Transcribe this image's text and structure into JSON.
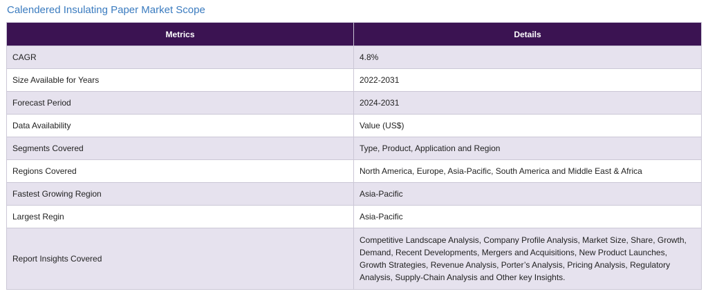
{
  "title": "Calendered Insulating Paper Market Scope",
  "colors": {
    "title": "#3a7bbf",
    "header_bg": "#3b1352",
    "row_alt_bg": "#e6e2ee"
  },
  "table": {
    "headers": [
      "Metrics",
      "Details"
    ],
    "rows": [
      {
        "metric": "CAGR",
        "detail": "4.8%"
      },
      {
        "metric": "Size Available for Years",
        "detail": "2022-2031"
      },
      {
        "metric": "Forecast Period",
        "detail": "2024-2031"
      },
      {
        "metric": "Data Availability",
        "detail": "Value (US$)"
      },
      {
        "metric": "Segments Covered",
        "detail": "Type, Product, Application and Region"
      },
      {
        "metric": "Regions Covered",
        "detail": "North America, Europe, Asia-Pacific, South America and Middle East & Africa"
      },
      {
        "metric": "Fastest Growing Region",
        "detail": "Asia-Pacific"
      },
      {
        "metric": "Largest Regin",
        "detail": "Asia-Pacific"
      },
      {
        "metric": "Report Insights Covered",
        "detail": "Competitive Landscape Analysis, Company Profile Analysis, Market Size, Share, Growth, Demand, Recent Developments, Mergers and Acquisitions, New Product Launches, Growth Strategies, Revenue Analysis, Porter’s Analysis, Pricing Analysis, Regulatory Analysis, Supply-Chain Analysis and Other key Insights."
      }
    ]
  }
}
